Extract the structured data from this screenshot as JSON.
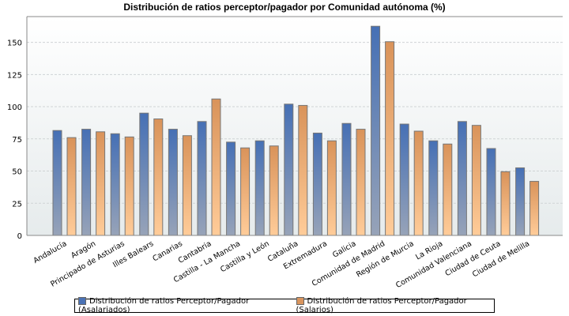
{
  "chart_data": {
    "type": "bar",
    "title": "Distribución de ratios perceptor/pagador por Comunidad autónoma (%)",
    "xlabel": "",
    "ylabel": "",
    "ylim": [
      0,
      170
    ],
    "yticks": [
      0,
      25,
      50,
      75,
      100,
      125,
      150
    ],
    "grid": true,
    "legend_position": "bottom",
    "categories": [
      "Andalucía",
      "Aragón",
      "Principado de Asturias",
      "Illes Balears",
      "Canarias",
      "Cantabria",
      "Castilla - La Mancha",
      "Castilla y León",
      "Cataluña",
      "Extremadura",
      "Galicia",
      "Comunidad de Madrid",
      "Región de Murcia",
      "La Rioja",
      "Comunidad Valenciana",
      "Ciudad de Ceuta",
      "Ciudad de Melilla"
    ],
    "series": [
      {
        "name": "Distribución de ratios Perceptor/Pagador (Asalariados)",
        "color": "#4a72b5",
        "values": [
          81.5,
          82.5,
          79,
          95,
          82.5,
          88.5,
          72.5,
          73.5,
          102,
          79.5,
          87,
          162.5,
          86.5,
          73.5,
          88.5,
          67.5,
          52.5
        ]
      },
      {
        "name": "Distribución de ratios Perceptor/Pagador (Salarios)",
        "color": "#d9955e",
        "values": [
          76,
          80.5,
          76.5,
          90.5,
          77.5,
          106,
          68,
          69.5,
          101,
          73.5,
          82.5,
          150.5,
          81,
          71,
          85.5,
          49.5,
          42
        ]
      }
    ]
  }
}
